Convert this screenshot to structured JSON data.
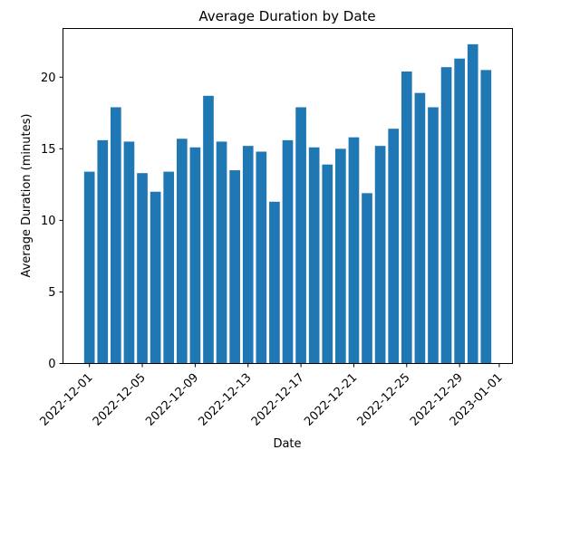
{
  "chart_data": {
    "type": "bar",
    "title": "Average Duration by Date",
    "xlabel": "Date",
    "ylabel": "Average Duration (minutes)",
    "x": [
      "2022-12-01",
      "2022-12-02",
      "2022-12-03",
      "2022-12-04",
      "2022-12-05",
      "2022-12-06",
      "2022-12-07",
      "2022-12-08",
      "2022-12-09",
      "2022-12-10",
      "2022-12-11",
      "2022-12-12",
      "2022-12-13",
      "2022-12-14",
      "2022-12-15",
      "2022-12-16",
      "2022-12-17",
      "2022-12-18",
      "2022-12-19",
      "2022-12-20",
      "2022-12-21",
      "2022-12-22",
      "2022-12-23",
      "2022-12-24",
      "2022-12-25",
      "2022-12-26",
      "2022-12-27",
      "2022-12-28",
      "2022-12-29",
      "2022-12-30",
      "2022-12-31"
    ],
    "values": [
      13.4,
      15.6,
      17.9,
      15.5,
      13.3,
      12.0,
      13.4,
      15.7,
      15.1,
      18.7,
      15.5,
      13.5,
      15.2,
      14.8,
      11.3,
      15.6,
      17.9,
      15.1,
      13.9,
      15.0,
      15.8,
      11.9,
      15.2,
      16.4,
      20.4,
      18.9,
      17.9,
      20.7,
      21.3,
      22.3,
      20.5
    ],
    "xticks": [
      "2022-12-01",
      "2022-12-05",
      "2022-12-09",
      "2022-12-13",
      "2022-12-17",
      "2022-12-21",
      "2022-12-25",
      "2022-12-29",
      "2023-01-01"
    ],
    "yticks": [
      0,
      5,
      10,
      15,
      20
    ],
    "xlim": [
      "2022-11-29",
      "2023-01-02"
    ],
    "ylim": [
      0,
      23.4
    ],
    "bar_color": "#1f77b4",
    "grid": false,
    "legend": "none"
  }
}
